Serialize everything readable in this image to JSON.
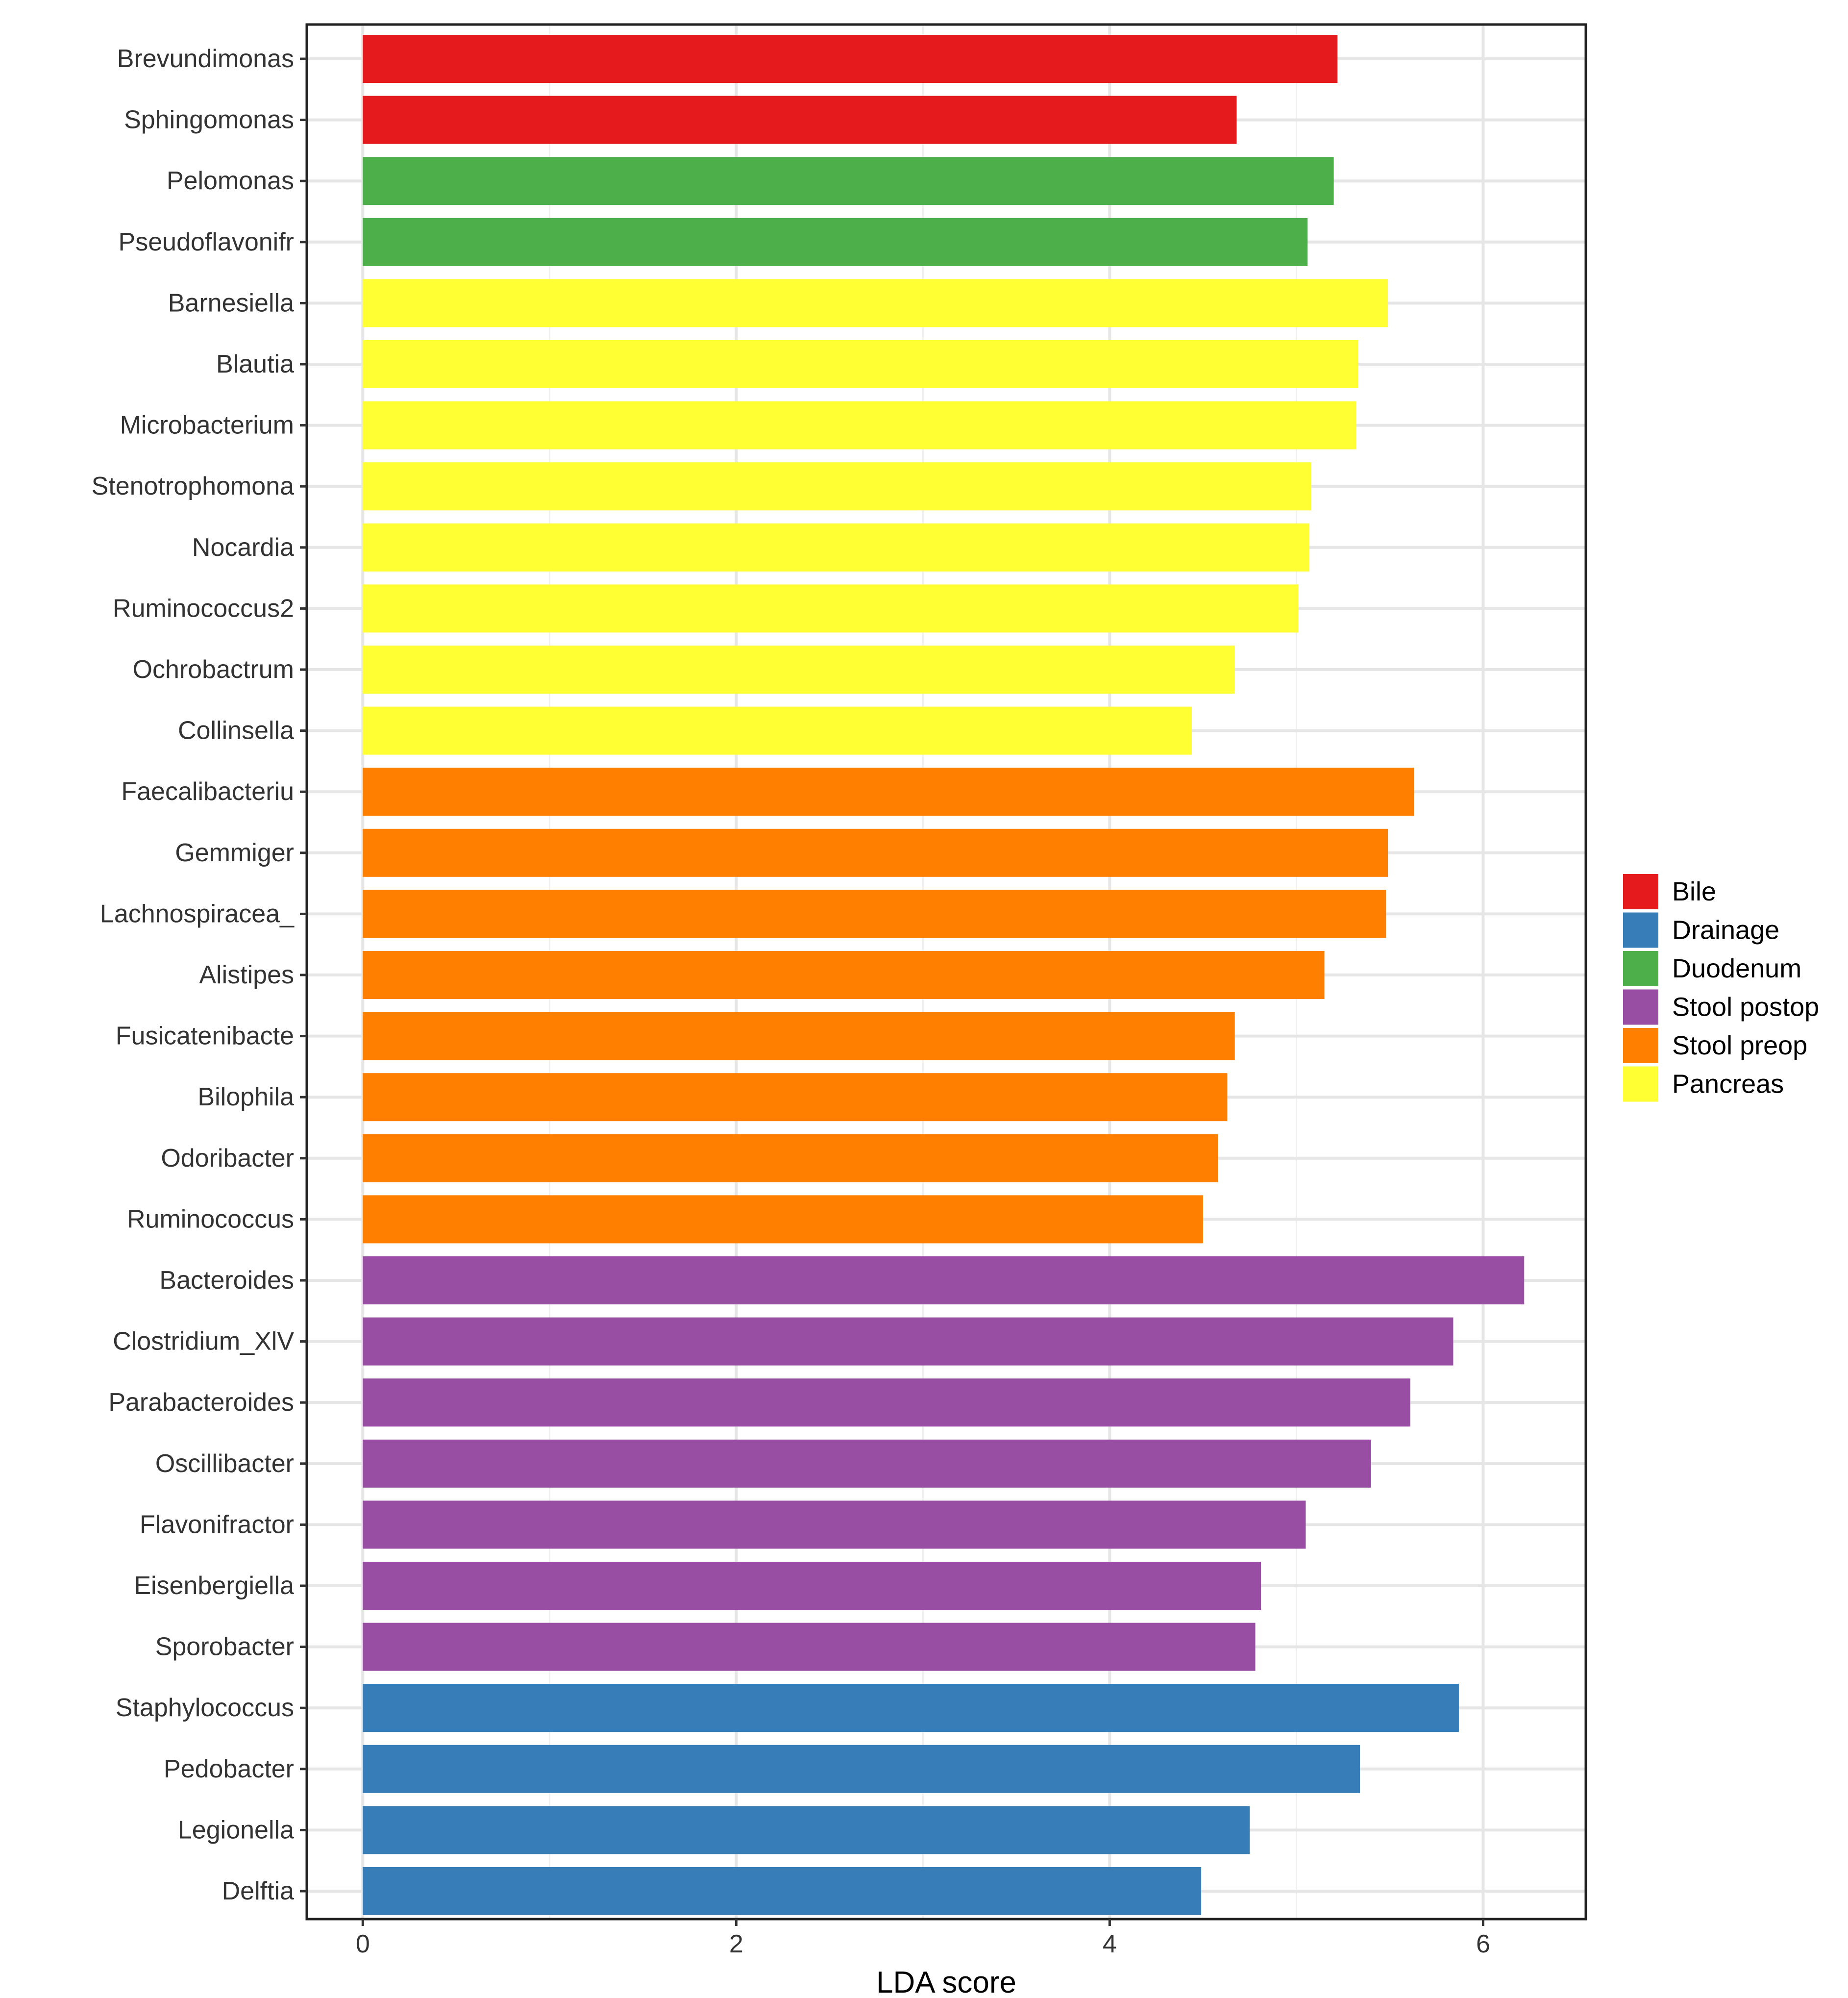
{
  "chart_data": {
    "type": "bar",
    "orientation": "horizontal",
    "xlabel": "LDA score",
    "ylabel": "",
    "title": "",
    "xlim": [
      -0.3,
      6.55
    ],
    "xticks": [
      0,
      2,
      4,
      6
    ],
    "grid": true,
    "legend_placement": "right",
    "legend": [
      {
        "name": "Bile",
        "color": "#E41A1C"
      },
      {
        "name": "Drainage",
        "color": "#377EB8"
      },
      {
        "name": "Duodenum",
        "color": "#4DAF4A"
      },
      {
        "name": "Stool postop",
        "color": "#984EA3"
      },
      {
        "name": "Stool preop",
        "color": "#FF7F00"
      },
      {
        "name": "Pancreas",
        "color": "#FFFF33"
      }
    ],
    "bars": [
      {
        "category": "Brevundimonas",
        "value": 5.22,
        "group": "Bile"
      },
      {
        "category": "Sphingomonas",
        "value": 4.68,
        "group": "Bile"
      },
      {
        "category": "Pelomonas",
        "value": 5.2,
        "group": "Duodenum"
      },
      {
        "category": "Pseudoflavonifr",
        "value": 5.06,
        "group": "Duodenum"
      },
      {
        "category": "Barnesiella",
        "value": 5.49,
        "group": "Pancreas"
      },
      {
        "category": "Blautia",
        "value": 5.33,
        "group": "Pancreas"
      },
      {
        "category": "Microbacterium",
        "value": 5.32,
        "group": "Pancreas"
      },
      {
        "category": "Stenotrophomona",
        "value": 5.08,
        "group": "Pancreas"
      },
      {
        "category": "Nocardia",
        "value": 5.07,
        "group": "Pancreas"
      },
      {
        "category": "Ruminococcus2",
        "value": 5.01,
        "group": "Pancreas"
      },
      {
        "category": "Ochrobactrum",
        "value": 4.67,
        "group": "Pancreas"
      },
      {
        "category": "Collinsella",
        "value": 4.44,
        "group": "Pancreas"
      },
      {
        "category": "Faecalibacteriu",
        "value": 5.63,
        "group": "Stool preop"
      },
      {
        "category": "Gemmiger",
        "value": 5.49,
        "group": "Stool preop"
      },
      {
        "category": "Lachnospiracea_",
        "value": 5.48,
        "group": "Stool preop"
      },
      {
        "category": "Alistipes",
        "value": 5.15,
        "group": "Stool preop"
      },
      {
        "category": "Fusicatenibacte",
        "value": 4.67,
        "group": "Stool preop"
      },
      {
        "category": "Bilophila",
        "value": 4.63,
        "group": "Stool preop"
      },
      {
        "category": "Odoribacter",
        "value": 4.58,
        "group": "Stool preop"
      },
      {
        "category": "Ruminococcus",
        "value": 4.5,
        "group": "Stool preop"
      },
      {
        "category": "Bacteroides",
        "value": 6.22,
        "group": "Stool postop"
      },
      {
        "category": "Clostridium_XlV",
        "value": 5.84,
        "group": "Stool postop"
      },
      {
        "category": "Parabacteroides",
        "value": 5.61,
        "group": "Stool postop"
      },
      {
        "category": "Oscillibacter",
        "value": 5.4,
        "group": "Stool postop"
      },
      {
        "category": "Flavonifractor",
        "value": 5.05,
        "group": "Stool postop"
      },
      {
        "category": "Eisenbergiella",
        "value": 4.81,
        "group": "Stool postop"
      },
      {
        "category": "Sporobacter",
        "value": 4.78,
        "group": "Stool postop"
      },
      {
        "category": "Staphylococcus",
        "value": 5.87,
        "group": "Drainage"
      },
      {
        "category": "Pedobacter",
        "value": 5.34,
        "group": "Drainage"
      },
      {
        "category": "Legionella",
        "value": 4.75,
        "group": "Drainage"
      },
      {
        "category": "Delftia",
        "value": 4.49,
        "group": "Drainage"
      }
    ]
  }
}
